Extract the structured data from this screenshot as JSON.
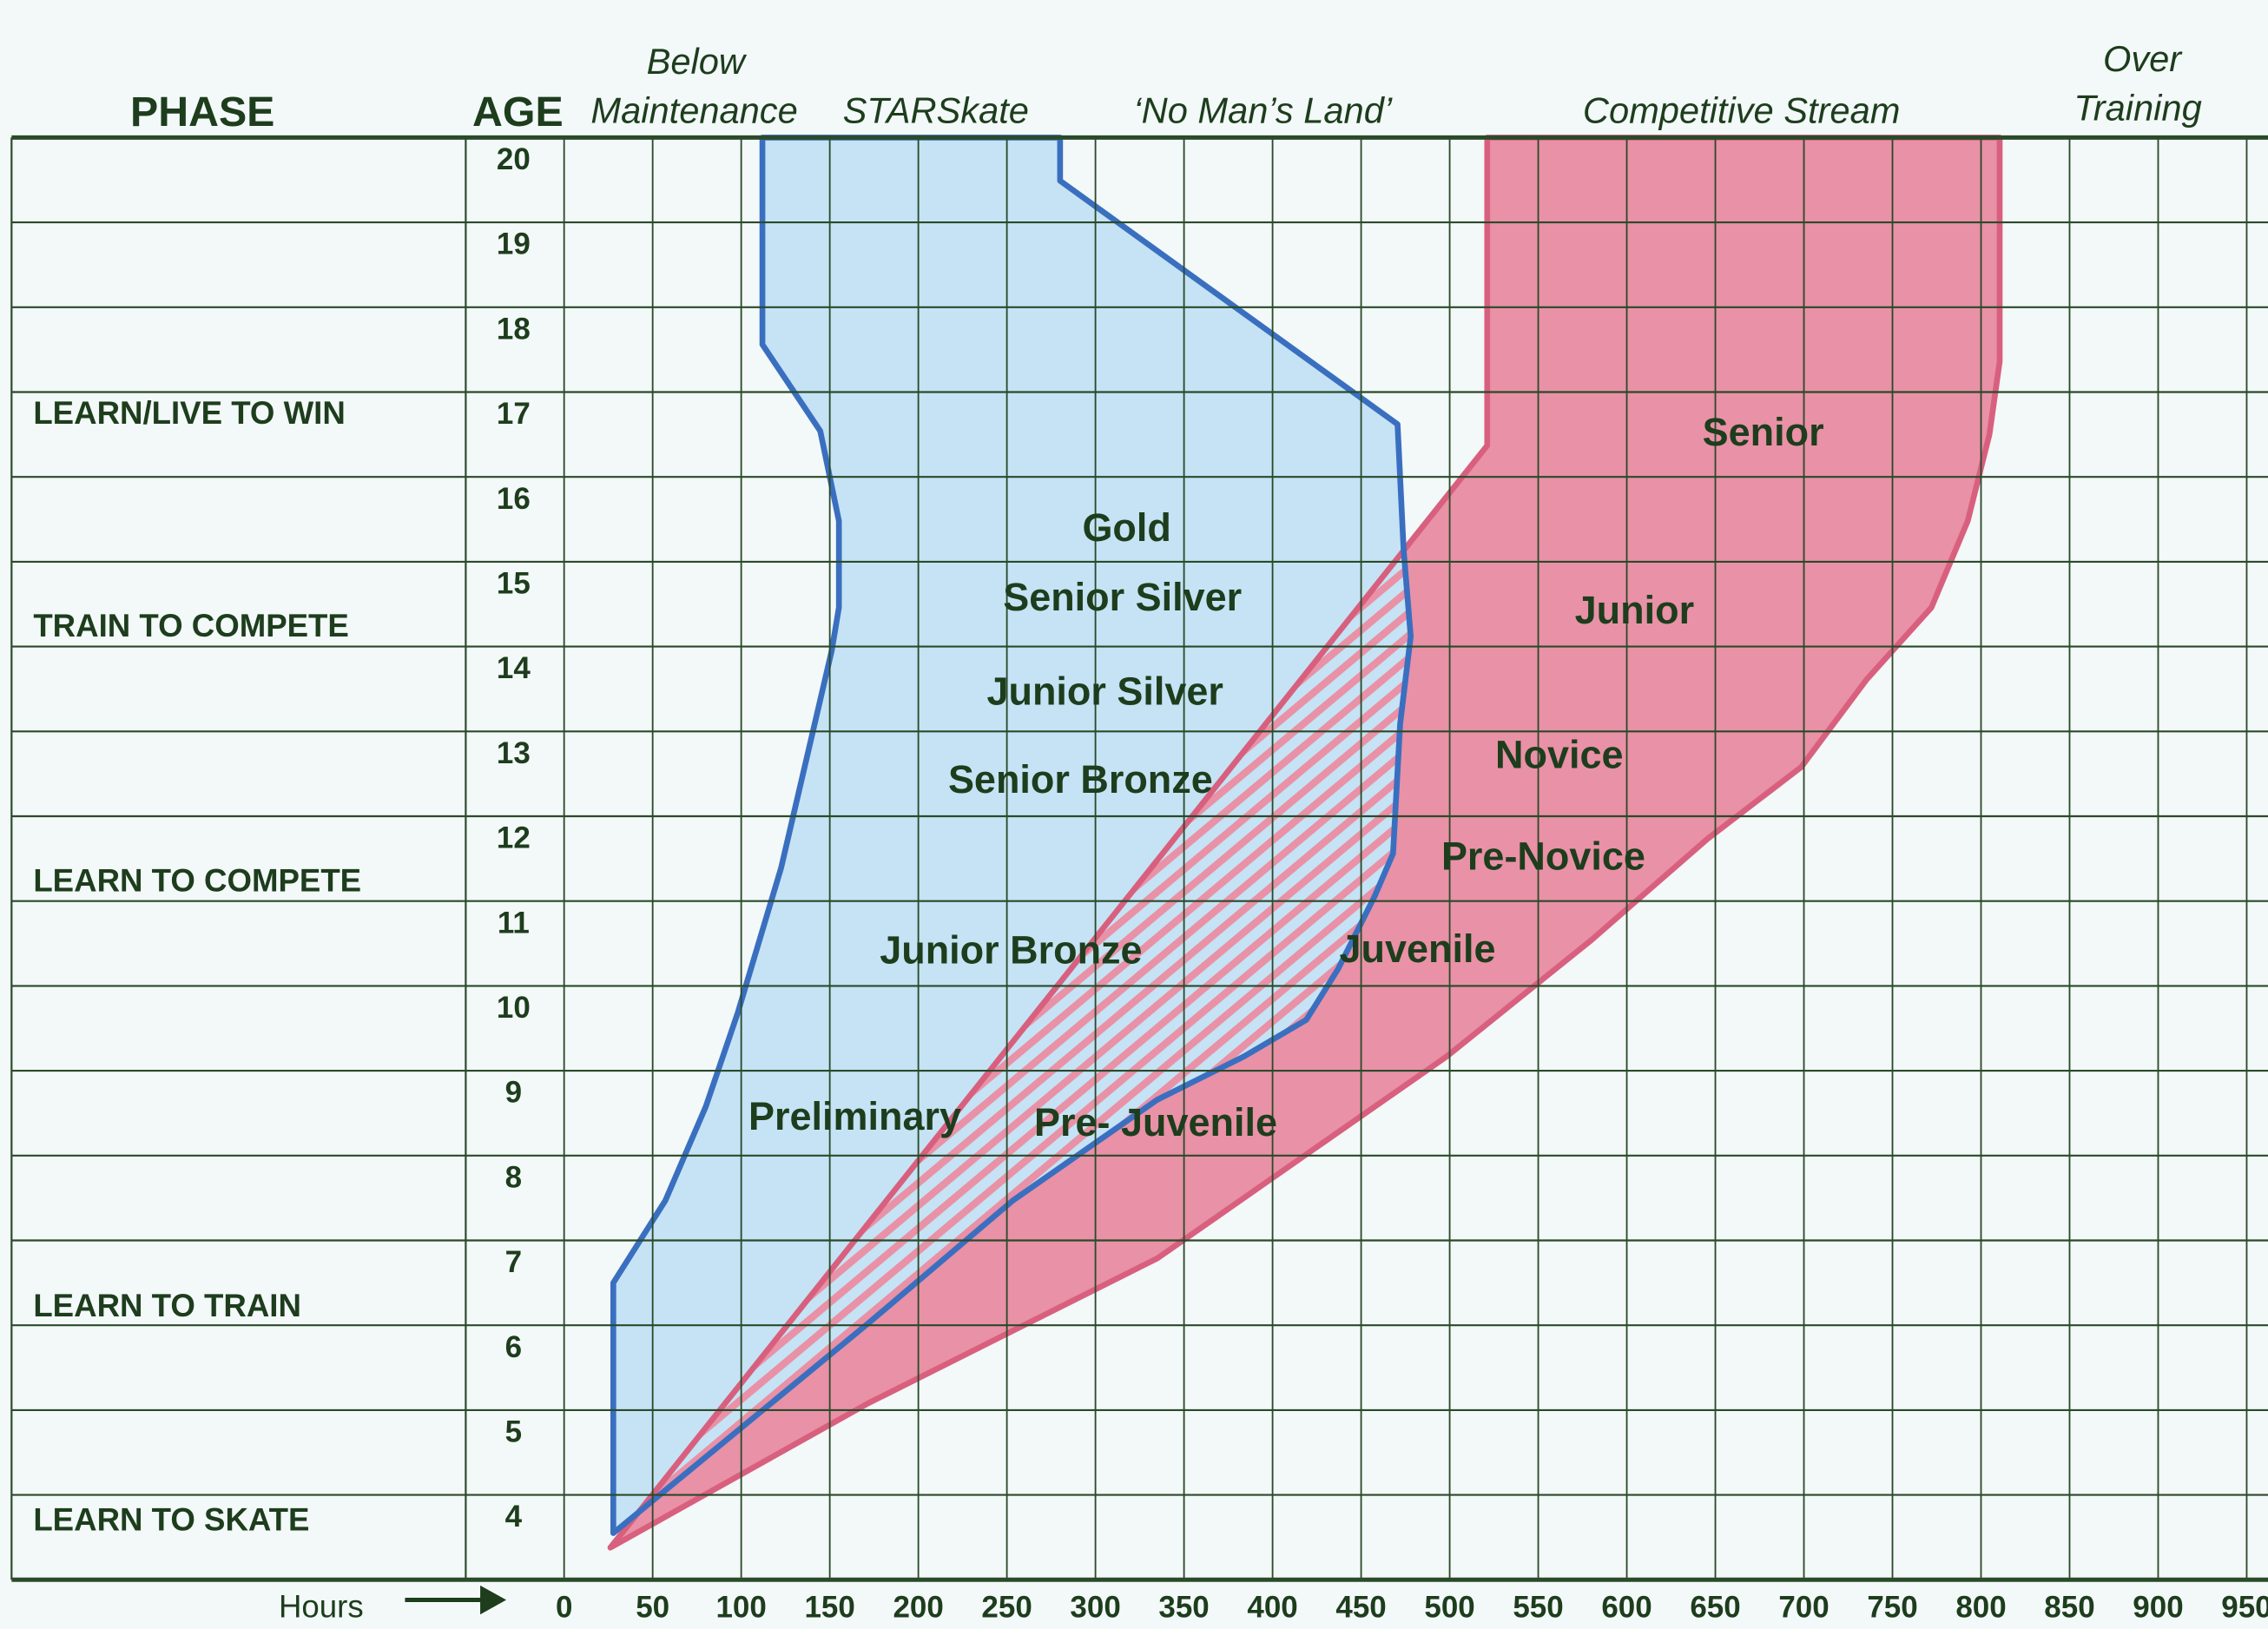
{
  "chart_data": {
    "type": "area",
    "title": "",
    "xlabel": "Hours",
    "ylabel": "AGE",
    "xlim": [
      0,
      950
    ],
    "ylim": [
      4,
      20
    ],
    "grid": true,
    "x_ticks": [
      "0",
      "50",
      "100",
      "150",
      "200",
      "250",
      "300",
      "350",
      "400",
      "450",
      "500",
      "550",
      "600",
      "650",
      "700",
      "750",
      "800",
      "850",
      "900",
      "950"
    ],
    "y_ticks": [
      "20",
      "19",
      "18",
      "17",
      "16",
      "15",
      "14",
      "13",
      "12",
      "11",
      "10",
      "9",
      "8",
      "7",
      "6",
      "5",
      "4"
    ],
    "headers": {
      "phase": "PHASE",
      "age": "AGE",
      "below_1": "Below",
      "below_2": "Maintenance",
      "starskate": "STARSkate",
      "no_mans_land": "‘No Man’s Land’",
      "competitive": "Competitive Stream",
      "over_1": "Over",
      "over_2": "Training"
    },
    "phases": [
      "LEARN/LIVE TO WIN",
      "TRAIN TO COMPETE",
      "LEARN TO COMPETE",
      "LEARN TO TRAIN",
      "LEARN TO SKATE"
    ],
    "series": [
      {
        "name": "STARSkate",
        "color": "#c5e3f4",
        "stroke": "#3a6fc0",
        "points": [
          [
            112,
            21
          ],
          [
            112,
            18.56
          ],
          [
            144.6,
            17.54
          ],
          [
            155.2,
            16.48
          ],
          [
            155.2,
            15.46
          ],
          [
            151.1,
            14.95
          ],
          [
            122.5,
            12.39
          ],
          [
            98,
            10.68
          ],
          [
            80,
            9.58
          ],
          [
            57.2,
            8.47
          ],
          [
            27.8,
            7.5
          ],
          [
            27.8,
            4.55
          ],
          [
            171.6,
            7.02
          ],
          [
            253.3,
            8.47
          ],
          [
            335,
            9.66
          ],
          [
            384,
            10.17
          ],
          [
            419,
            10.6
          ],
          [
            437,
            11.2
          ],
          [
            457.5,
            12.05
          ],
          [
            468,
            12.56
          ],
          [
            472,
            14.09
          ],
          [
            478,
            15.12
          ],
          [
            474,
            16.14
          ],
          [
            470.6,
            17.62
          ],
          [
            280,
            20.49
          ],
          [
            280,
            21
          ]
        ]
      },
      {
        "name": "Competitive Stream",
        "color": "#e991a6",
        "stroke": "#d8607e",
        "points": [
          [
            521.2,
            21
          ],
          [
            521.2,
            17.37
          ],
          [
            26.1,
            4.38
          ],
          [
            171.6,
            6.08
          ],
          [
            335,
            7.79
          ],
          [
            416.7,
            8.98
          ],
          [
            498.4,
            10.17
          ],
          [
            580,
            11.54
          ],
          [
            645.4,
            12.73
          ],
          [
            698.5,
            13.58
          ],
          [
            735.3,
            14.61
          ],
          [
            772,
            15.46
          ],
          [
            792.5,
            16.48
          ],
          [
            804.7,
            17.5
          ],
          [
            810.5,
            18.36
          ],
          [
            810.5,
            21
          ]
        ]
      }
    ],
    "annotations": [
      "Gold",
      "Senior Silver",
      "Junior Silver",
      "Senior Bronze",
      "Junior Bronze",
      "Preliminary",
      "Pre- Juvenile",
      "Juvenile",
      "Pre-Novice",
      "Novice",
      "Junior",
      "Senior"
    ]
  }
}
